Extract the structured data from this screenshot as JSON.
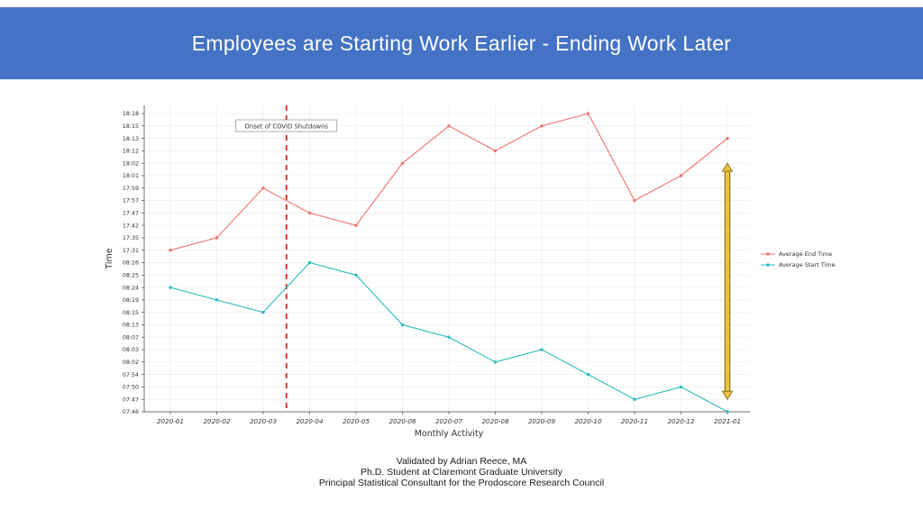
{
  "header": {
    "title": "Employees are Starting Work Earlier - Ending Work Later"
  },
  "chart_data": {
    "type": "line",
    "title": "Employees are Starting Work Earlier - Ending Work Later",
    "xlabel": "Monthly Activity",
    "ylabel": "Time",
    "x": [
      "2020-01",
      "2020-02",
      "2020-03",
      "2020-04",
      "2020-05",
      "2020-06",
      "2020-07",
      "2020-08",
      "2020-09",
      "2020-10",
      "2020-11",
      "2020-12",
      "2021-01"
    ],
    "y_axis_type": "categorical-evenly-spaced",
    "y_axis_ticks_top_to_bottom": [
      "18:18",
      "18:15",
      "18:13",
      "18:12",
      "18:02",
      "18:01",
      "17:59",
      "17:57",
      "17:47",
      "17:42",
      "17:35",
      "17:31",
      "08:26",
      "08:25",
      "08:24",
      "08:19",
      "08:15",
      "08:13",
      "08:07",
      "08:03",
      "08:02",
      "07:54",
      "07:50",
      "07:47",
      "07:46"
    ],
    "series": [
      {
        "name": "Average End Time",
        "color": "#F0736F",
        "values": [
          "17:31",
          "17:35",
          "17:59",
          "17:47",
          "17:42",
          "18:02",
          "18:15",
          "18:12",
          "18:15",
          "18:18",
          "17:57",
          "18:01",
          "18:13"
        ]
      },
      {
        "name": "Average Start Time",
        "color": "#2BBCC0",
        "values": [
          "08:24",
          "08:19",
          "08:15",
          "08:26",
          "08:25",
          "08:13",
          "08:07",
          "08:02",
          "08:03",
          "07:54",
          "07:47",
          "07:50",
          "07:46"
        ]
      }
    ],
    "annotations": {
      "covid_line": {
        "label": "Onset of COVID Shutdowns",
        "x_between": [
          "2020-03",
          "2020-04"
        ],
        "color": "#E0241B",
        "style": "dashed"
      },
      "span_arrow": {
        "x": "2021-01",
        "from": "18:02",
        "to": "07:47",
        "color": "#EFC243",
        "outline": "#8F7718"
      }
    },
    "legend": {
      "position": "right",
      "entries": [
        "Average End Time",
        "Average Start Time"
      ]
    },
    "grid": true
  },
  "footer": {
    "lines": [
      "Validated by Adrian Reece, MA",
      "Ph.D. Student at Claremont Graduate University",
      "Principal Statistical Consultant for the Prodoscore Research Council"
    ]
  },
  "colors": {
    "banner": "#4472C4",
    "banner_text": "#FFFFFF",
    "grid": "#EBEBEB",
    "axis_line": "#4a4a4a",
    "axis_text": "#333333"
  }
}
